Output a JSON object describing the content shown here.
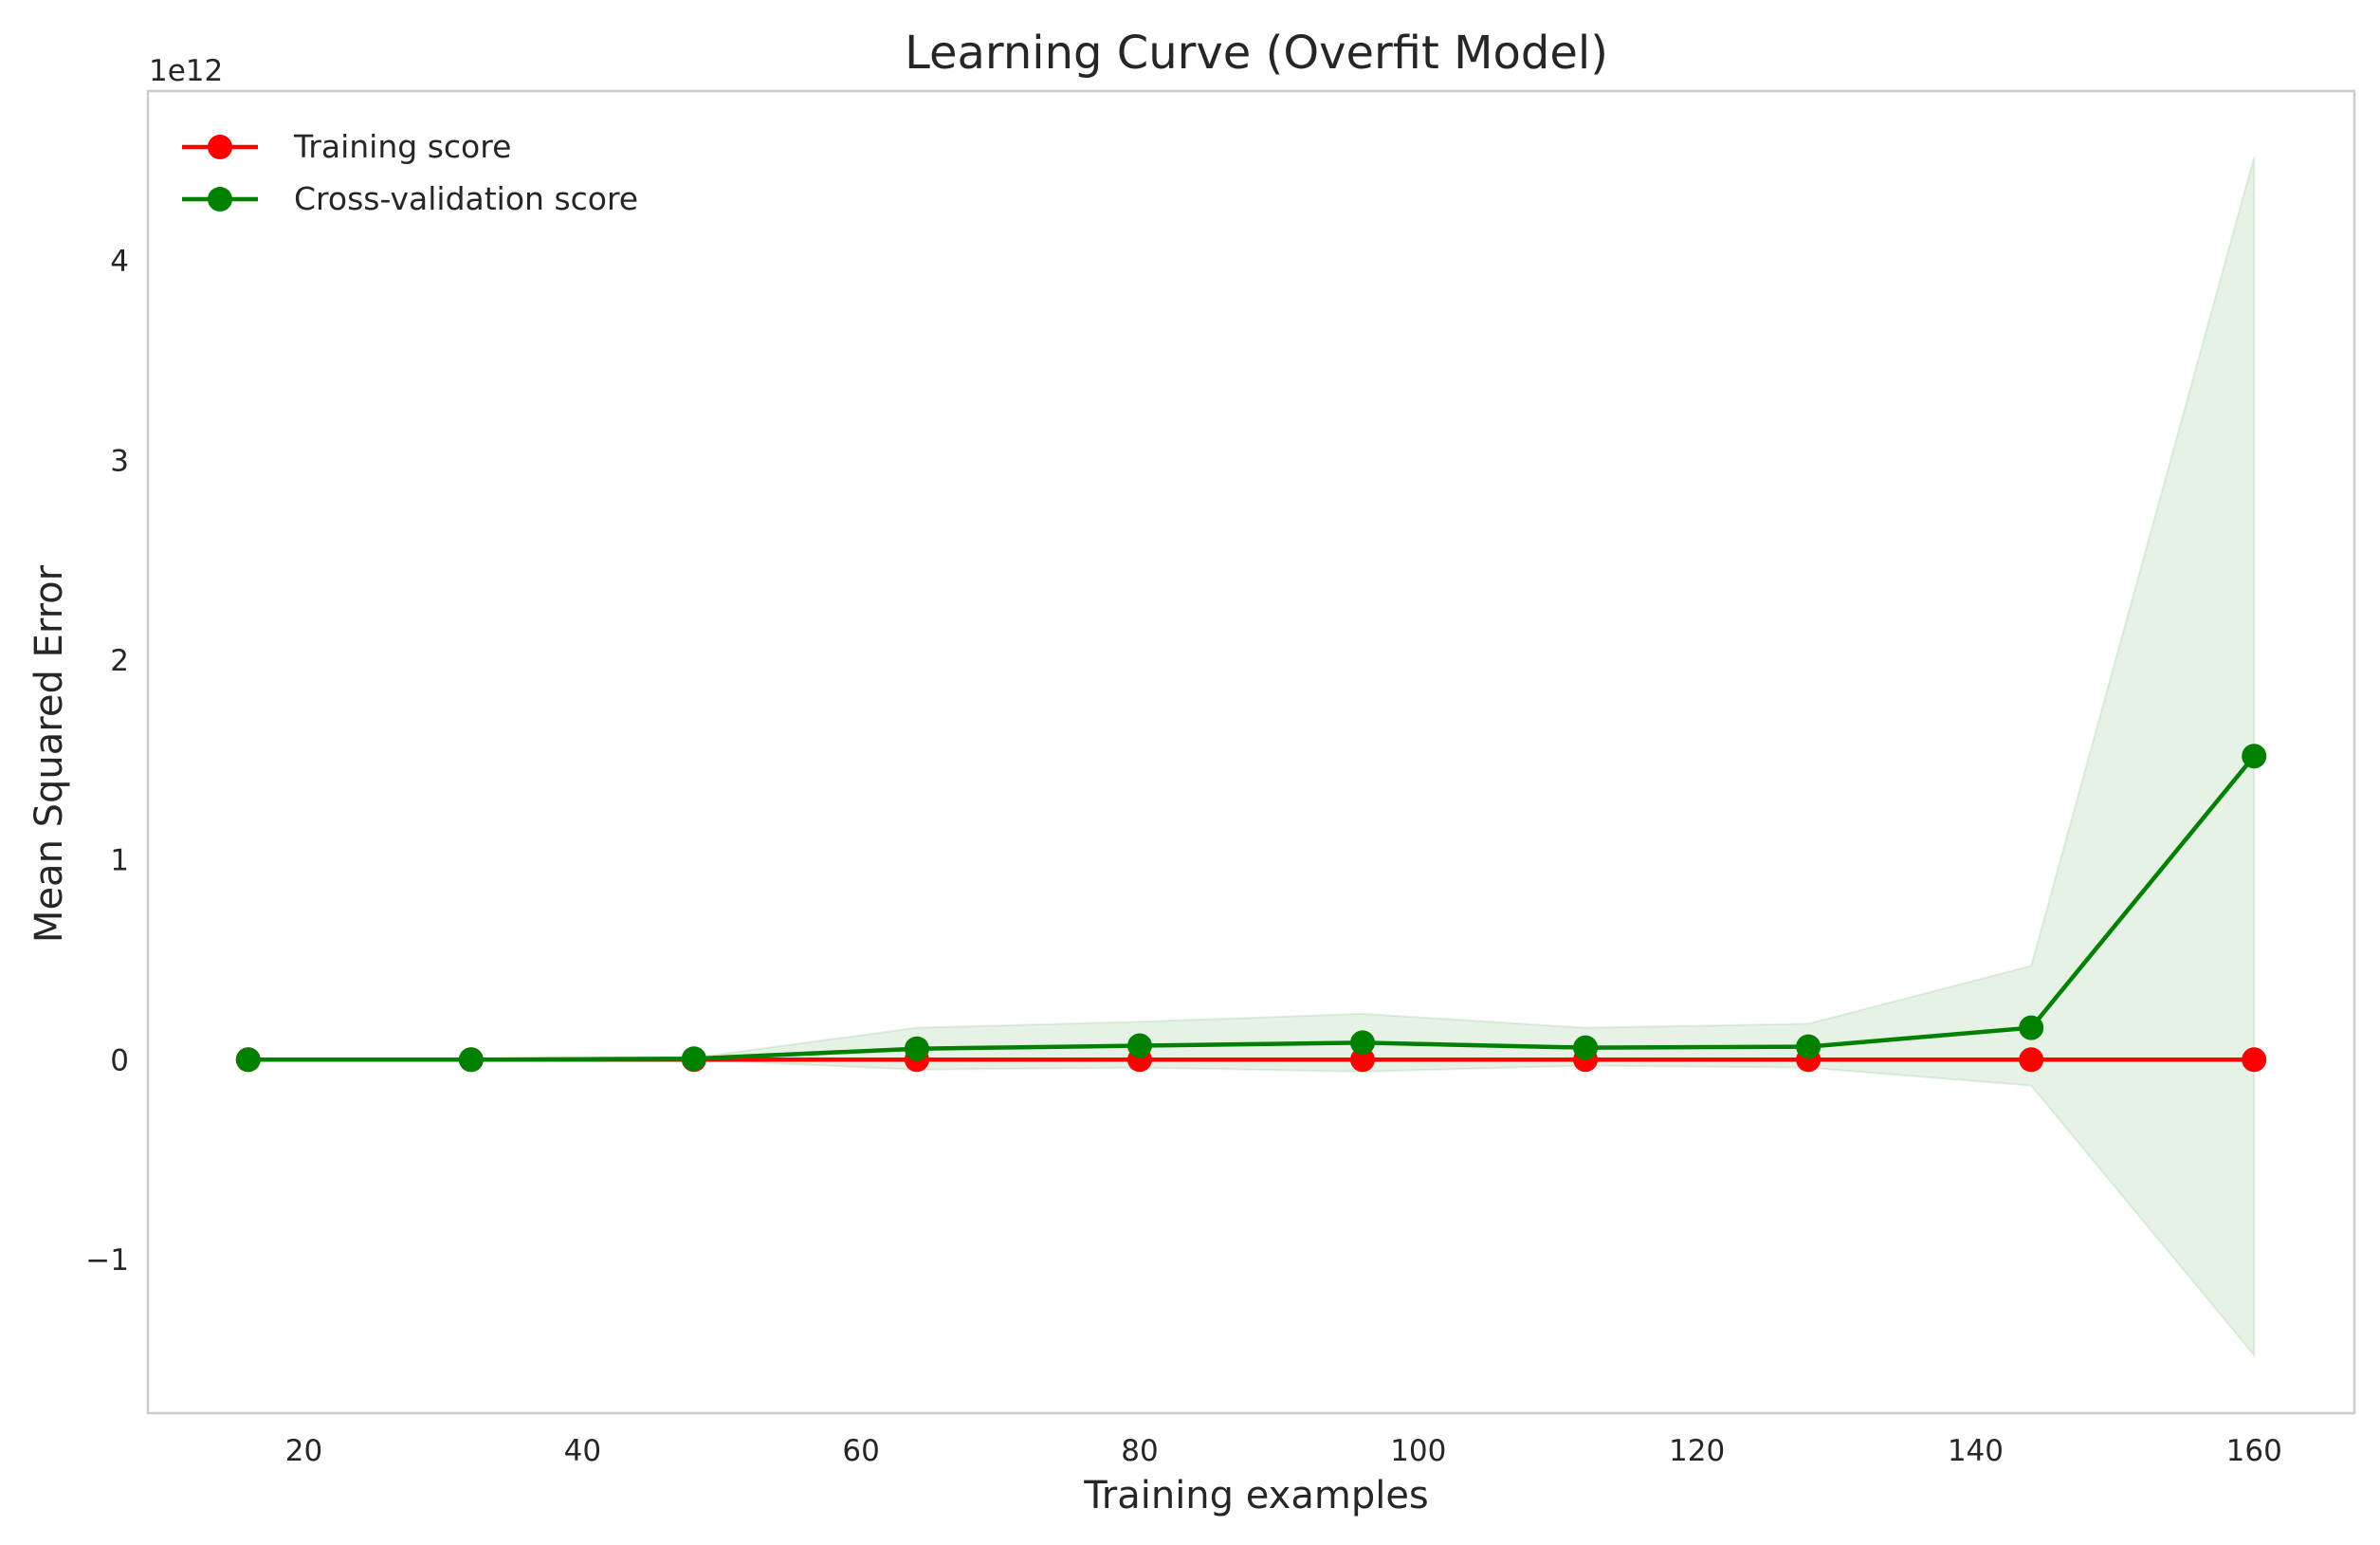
{
  "chart_data": {
    "type": "line",
    "title": "Learning Curve (Overfit Model)",
    "xlabel": "Training examples",
    "ylabel": "Mean Squared Error",
    "y_offset_label": "1e12",
    "y_scale_factor": 1000000000000.0,
    "x": [
      16,
      32,
      48,
      64,
      80,
      96,
      112,
      128,
      144,
      160
    ],
    "xlim": [
      8.8,
      167.2
    ],
    "ylim": [
      -1.77,
      4.85
    ],
    "xticks": [
      20,
      40,
      60,
      80,
      100,
      120,
      140,
      160
    ],
    "yticks": [
      -1,
      0,
      1,
      2,
      3,
      4
    ],
    "ytick_labels": [
      "−1",
      "0",
      "1",
      "2",
      "3",
      "4"
    ],
    "grid": false,
    "legend_position": "top-left",
    "series": [
      {
        "name": "Training score",
        "color": "#ff0000",
        "values": [
          0,
          0,
          0,
          0,
          0,
          0,
          0,
          0,
          0,
          0
        ]
      },
      {
        "name": "Cross-validation score",
        "color": "#008000",
        "values": [
          0.0,
          0.0,
          0.005,
          0.055,
          0.07,
          0.085,
          0.06,
          0.065,
          0.16,
          1.52
        ],
        "band_lower": [
          0.0,
          0.0,
          0.0,
          -0.05,
          -0.04,
          -0.06,
          -0.03,
          -0.04,
          -0.13,
          -1.48
        ],
        "band_upper": [
          0.0,
          0.0,
          0.01,
          0.16,
          0.19,
          0.23,
          0.16,
          0.18,
          0.47,
          4.52
        ],
        "band_color": "#008000"
      }
    ]
  }
}
